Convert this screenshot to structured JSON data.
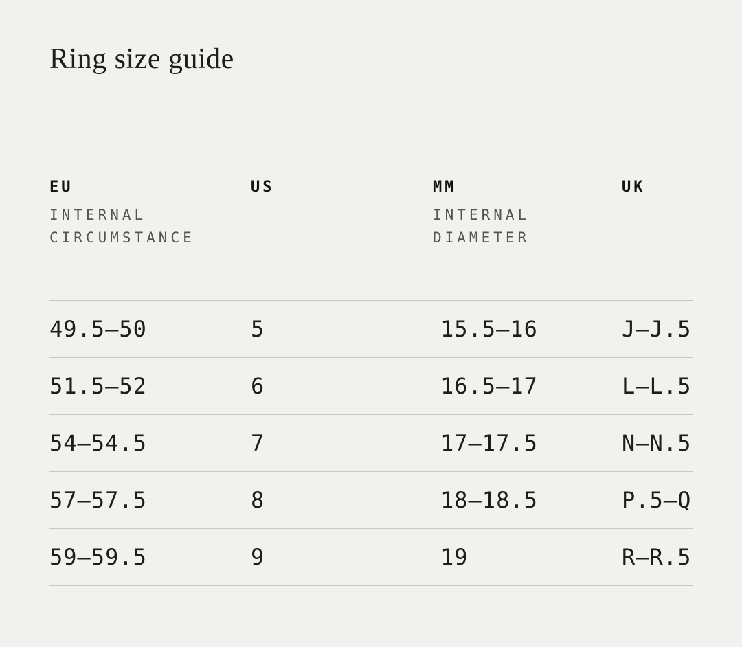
{
  "page": {
    "title": "Ring size guide"
  },
  "colors": {
    "background": "#f1f1ef",
    "text": "#1d1d1b",
    "subheader_text": "#55554f",
    "divider_line": "#c7c7c3"
  },
  "table": {
    "columns": [
      {
        "key": "eu",
        "label": "EU",
        "sublabel_line1": "INTERNAL",
        "sublabel_line2": "CIRCUMSTANCE"
      },
      {
        "key": "us",
        "label": "US",
        "sublabel_line1": "",
        "sublabel_line2": ""
      },
      {
        "key": "mm",
        "label": "MM",
        "sublabel_line1": "INTERNAL",
        "sublabel_line2": "DIAMETER"
      },
      {
        "key": "uk",
        "label": "UK",
        "sublabel_line1": "",
        "sublabel_line2": ""
      }
    ],
    "rows": [
      {
        "eu": "49.5—50",
        "us": "5",
        "mm": "15.5—16",
        "uk": "J—J.5"
      },
      {
        "eu": "51.5—52",
        "us": "6",
        "mm": "16.5—17",
        "uk": "L—L.5"
      },
      {
        "eu": "54—54.5",
        "us": "7",
        "mm": "17—17.5",
        "uk": "N—N.5"
      },
      {
        "eu": "57—57.5",
        "us": "8",
        "mm": "18—18.5",
        "uk": "P.5—Q"
      },
      {
        "eu": "59—59.5",
        "us": "9",
        "mm": "19",
        "uk": "R—R.5"
      }
    ]
  }
}
